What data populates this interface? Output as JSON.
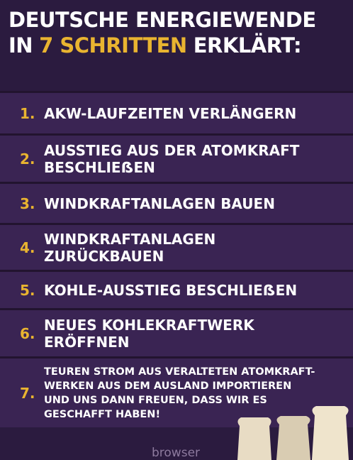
{
  "header": {
    "line1": "DEUTSCHE ENERGIEWENDE",
    "line2": [
      "IN",
      "7 SCHRITTEN",
      "ERKLÄRT:"
    ]
  },
  "items": [
    {
      "number": "1.",
      "lines": [
        "AKW-LAUFZEITEN VERLÄNGERN"
      ]
    },
    {
      "number": "2.",
      "lines": [
        "AUSSTIEG AUS DER ATOMKRAFT",
        "BESCHLIEẞEN"
      ]
    },
    {
      "number": "3.",
      "lines": [
        "WINDKRAFTANLAGEN BAUEN"
      ]
    },
    {
      "number": "4.",
      "lines": [
        "WINDKRAFTANLAGEN",
        "ZURÜCKBAUEN"
      ]
    },
    {
      "number": "5.",
      "lines": [
        "KOHLE-AUSSTIEG BESCHLIEẞEN"
      ]
    },
    {
      "number": "6.",
      "lines": [
        "NEUES KOHLEKRAFTWERK",
        "ERÖFFNEN"
      ]
    },
    {
      "number": "7.",
      "lines": [
        "TEUREN STROM AUS VERALTETEN ATOMKRAFT-",
        "WERKEN AUS DEM AUSLAND IMPORTIEREN",
        "UND UNS DANN FREUEN, DASS WIR ES",
        "GESCHAFFT HABEN!"
      ]
    }
  ],
  "watermark": "browser"
}
